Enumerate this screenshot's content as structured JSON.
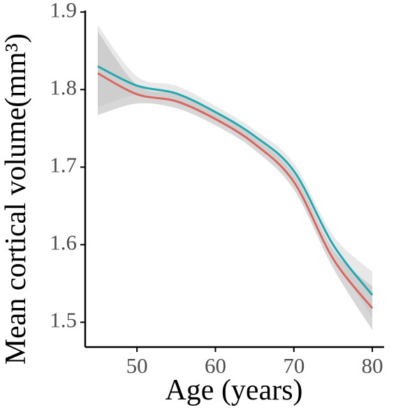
{
  "chart_data": {
    "type": "line",
    "x_label": "Age (years)",
    "y_label": "Mean cortical volume(mm³)",
    "x": [
      45,
      50,
      55,
      60,
      65,
      70,
      75,
      80
    ],
    "series": [
      {
        "color": "#d9675f",
        "band_color": "#8c8c8c",
        "values": [
          1.821,
          1.794,
          1.785,
          1.762,
          1.73,
          1.681,
          1.582,
          1.518
        ],
        "lower": [
          1.767,
          1.782,
          1.776,
          1.754,
          1.722,
          1.671,
          1.57,
          1.49
        ],
        "upper": [
          1.875,
          1.806,
          1.794,
          1.77,
          1.738,
          1.691,
          1.594,
          1.546
        ]
      },
      {
        "color": "#21a8b0",
        "band_color": "#bdbdbd",
        "values": [
          1.83,
          1.805,
          1.795,
          1.771,
          1.74,
          1.695,
          1.6,
          1.535
        ],
        "lower": [
          1.777,
          1.793,
          1.785,
          1.763,
          1.732,
          1.685,
          1.588,
          1.505
        ],
        "upper": [
          1.883,
          1.817,
          1.805,
          1.779,
          1.748,
          1.705,
          1.612,
          1.565
        ]
      }
    ],
    "xlim": [
      43.4,
      81.5
    ],
    "ylim": [
      1.468,
      1.902
    ],
    "xticks": [
      50,
      60,
      70,
      80
    ],
    "yticks": [
      1.5,
      1.6,
      1.7,
      1.8,
      1.9
    ]
  }
}
